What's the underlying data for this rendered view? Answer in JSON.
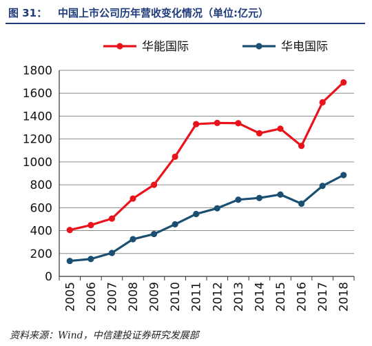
{
  "figure": {
    "number": "图 31：",
    "title": "中国上市公司历年营收变化情况（单位:亿元）",
    "source": "资料来源：Wind，中信建投证券研究发展部"
  },
  "chart_data": {
    "type": "line",
    "title": "中国上市公司历年营收变化情况（单位:亿元）",
    "xlabel": "",
    "ylabel": "",
    "categories": [
      "2005",
      "2006",
      "2007",
      "2008",
      "2009",
      "2010",
      "2011",
      "2012",
      "2013",
      "2014",
      "2015",
      "2016",
      "2017",
      "2018"
    ],
    "ylim": [
      0,
      1800
    ],
    "yticks": [
      0,
      200,
      400,
      600,
      800,
      1000,
      1200,
      1400,
      1600,
      1800
    ],
    "grid": true,
    "legend_position": "top",
    "series": [
      {
        "name": "华能国际",
        "color": "#e8131b",
        "values": [
          405,
          448,
          505,
          680,
          800,
          1045,
          1330,
          1340,
          1338,
          1250,
          1290,
          1140,
          1520,
          1695
        ]
      },
      {
        "name": "华电国际",
        "color": "#1b4f72",
        "values": [
          135,
          152,
          205,
          325,
          370,
          455,
          545,
          595,
          670,
          685,
          715,
          635,
          790,
          885
        ]
      }
    ]
  }
}
